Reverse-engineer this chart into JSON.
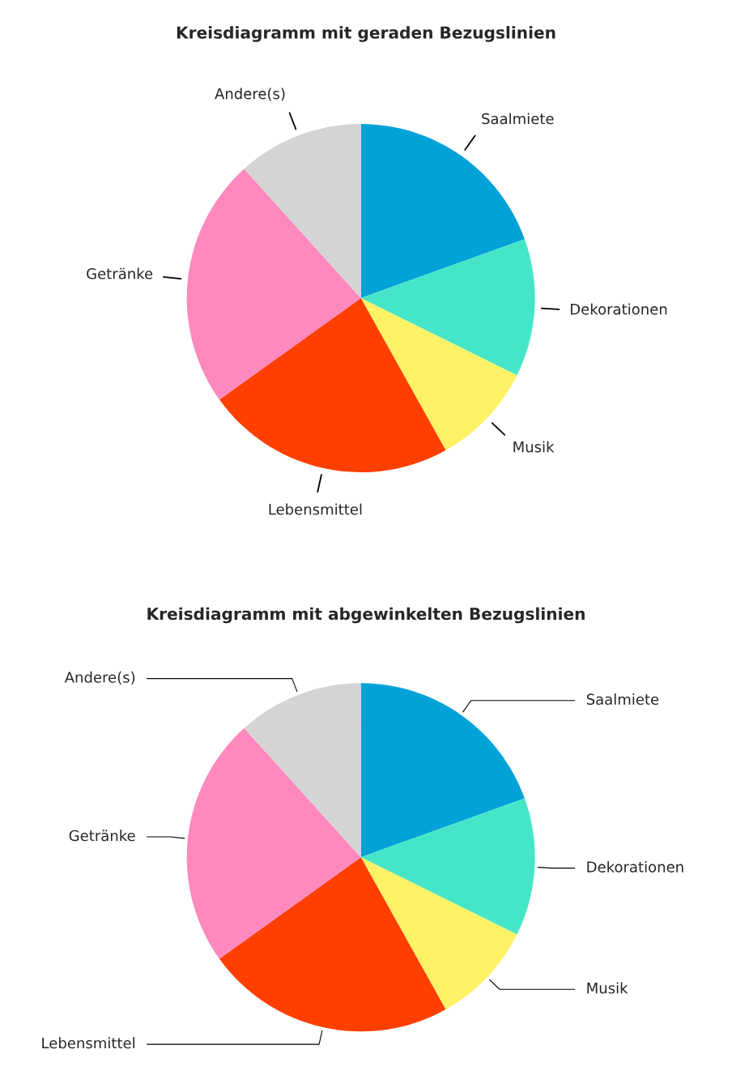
{
  "chart_data": [
    {
      "type": "pie",
      "title": "Kreisdiagramm mit geraden Bezugslinien",
      "categories": [
        "Saalmiete",
        "Dekorationen",
        "Musik",
        "Lebensmittel",
        "Getränke",
        "Andere(s)"
      ],
      "values": [
        19.5,
        12.8,
        9.6,
        23.2,
        23.2,
        11.7
      ],
      "colors": [
        "#00a2d8",
        "#45e6c8",
        "#fff266",
        "#ff3f00",
        "#ff88bf",
        "#d4d4d4"
      ]
    },
    {
      "type": "pie",
      "title": "Kreisdiagramm mit abgewinkelten Bezugslinien",
      "categories": [
        "Saalmiete",
        "Dekorationen",
        "Musik",
        "Lebensmittel",
        "Getränke",
        "Andere(s)"
      ],
      "values": [
        19.5,
        12.8,
        9.6,
        23.2,
        23.2,
        11.7
      ],
      "colors": [
        "#00a2d8",
        "#45e6c8",
        "#fff266",
        "#ff3f00",
        "#ff88bf",
        "#d4d4d4"
      ]
    }
  ]
}
